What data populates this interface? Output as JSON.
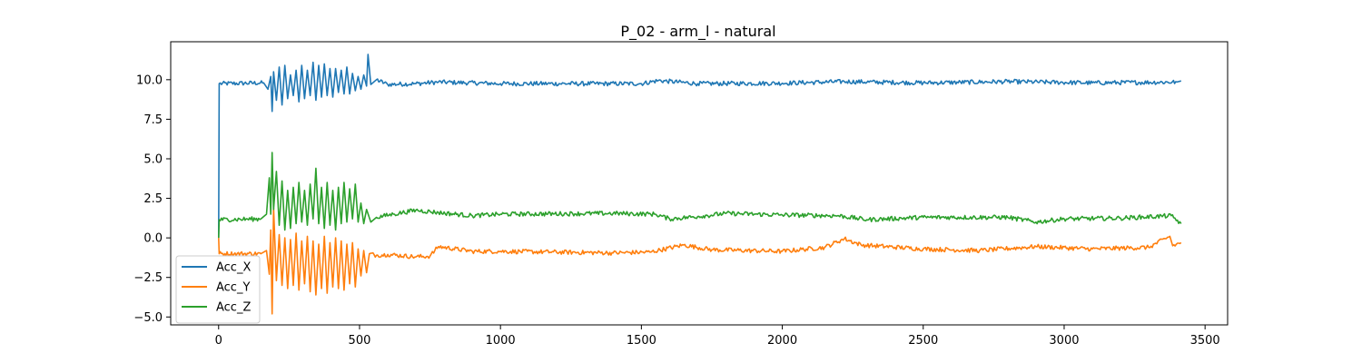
{
  "chart_data": {
    "type": "line",
    "title": "P_02 - arm_l - natural",
    "xlabel": "",
    "ylabel": "",
    "xlim": [
      -170,
      3580
    ],
    "ylim": [
      -5.5,
      12.4
    ],
    "x_ticks": [
      0,
      500,
      1000,
      1500,
      2000,
      2500,
      3000,
      3500
    ],
    "x_tick_labels": [
      "0",
      "500",
      "1000",
      "1500",
      "2000",
      "2500",
      "3000",
      "3500"
    ],
    "y_ticks": [
      -5.0,
      -2.5,
      0.0,
      2.5,
      5.0,
      7.5,
      10.0
    ],
    "y_tick_labels": [
      "−5.0",
      "−2.5",
      "0.0",
      "2.5",
      "5.0",
      "7.5",
      "10.0"
    ],
    "grid": false,
    "legend_position": "lower-left",
    "series": [
      {
        "name": "Acc_X",
        "color": "#1f77b4",
        "points": [
          [
            0,
            0.0
          ],
          [
            2,
            9.75
          ],
          [
            160,
            9.8
          ],
          [
            175,
            9.4
          ],
          [
            185,
            10.2
          ],
          [
            190,
            8.0
          ],
          [
            195,
            10.5
          ],
          [
            205,
            8.7
          ],
          [
            215,
            10.8
          ],
          [
            225,
            8.4
          ],
          [
            235,
            10.9
          ],
          [
            245,
            8.8
          ],
          [
            255,
            10.3
          ],
          [
            265,
            9.0
          ],
          [
            275,
            10.6
          ],
          [
            285,
            8.6
          ],
          [
            295,
            10.9
          ],
          [
            305,
            8.8
          ],
          [
            315,
            10.6
          ],
          [
            325,
            9.0
          ],
          [
            335,
            11.1
          ],
          [
            345,
            8.7
          ],
          [
            355,
            10.9
          ],
          [
            365,
            8.9
          ],
          [
            375,
            11.0
          ],
          [
            385,
            9.0
          ],
          [
            395,
            10.7
          ],
          [
            405,
            8.9
          ],
          [
            415,
            10.7
          ],
          [
            425,
            9.2
          ],
          [
            435,
            10.6
          ],
          [
            445,
            9.1
          ],
          [
            455,
            10.8
          ],
          [
            465,
            9.1
          ],
          [
            475,
            10.4
          ],
          [
            485,
            9.3
          ],
          [
            495,
            10.2
          ],
          [
            505,
            9.4
          ],
          [
            515,
            10.3
          ],
          [
            525,
            9.6
          ],
          [
            530,
            11.6
          ],
          [
            540,
            9.7
          ],
          [
            560,
            10.0
          ],
          [
            600,
            9.7
          ],
          [
            700,
            9.75
          ],
          [
            780,
            9.85
          ],
          [
            1000,
            9.75
          ],
          [
            1500,
            9.75
          ],
          [
            1560,
            9.95
          ],
          [
            1700,
            9.75
          ],
          [
            2000,
            9.78
          ],
          [
            2220,
            9.88
          ],
          [
            2500,
            9.8
          ],
          [
            2800,
            9.88
          ],
          [
            3100,
            9.8
          ],
          [
            3400,
            9.85
          ],
          [
            3415,
            9.92
          ]
        ]
      },
      {
        "name": "Acc_Y",
        "color": "#ff7f0e",
        "points": [
          [
            0,
            0.0
          ],
          [
            2,
            -1.0
          ],
          [
            150,
            -1.0
          ],
          [
            170,
            -0.8
          ],
          [
            180,
            -2.3
          ],
          [
            185,
            0.5
          ],
          [
            190,
            -4.8
          ],
          [
            195,
            1.9
          ],
          [
            205,
            -2.7
          ],
          [
            215,
            0.2
          ],
          [
            225,
            -3.0
          ],
          [
            235,
            0.0
          ],
          [
            245,
            -3.2
          ],
          [
            255,
            -0.1
          ],
          [
            265,
            -3.0
          ],
          [
            275,
            0.3
          ],
          [
            285,
            -3.3
          ],
          [
            295,
            -0.2
          ],
          [
            305,
            -2.9
          ],
          [
            315,
            0.1
          ],
          [
            325,
            -3.4
          ],
          [
            335,
            -0.2
          ],
          [
            345,
            -3.6
          ],
          [
            355,
            -0.4
          ],
          [
            365,
            -3.2
          ],
          [
            375,
            0.1
          ],
          [
            385,
            -3.5
          ],
          [
            395,
            -0.3
          ],
          [
            405,
            -3.1
          ],
          [
            415,
            0.0
          ],
          [
            425,
            -3.2
          ],
          [
            435,
            -0.2
          ],
          [
            445,
            -3.3
          ],
          [
            455,
            -0.4
          ],
          [
            465,
            -2.9
          ],
          [
            475,
            -0.3
          ],
          [
            485,
            -3.1
          ],
          [
            495,
            -0.7
          ],
          [
            505,
            -2.4
          ],
          [
            515,
            -0.8
          ],
          [
            525,
            -2.2
          ],
          [
            535,
            -1.0
          ],
          [
            560,
            -1.1
          ],
          [
            600,
            -1.05
          ],
          [
            700,
            -1.2
          ],
          [
            750,
            -1.15
          ],
          [
            780,
            -0.55
          ],
          [
            900,
            -0.85
          ],
          [
            1000,
            -0.85
          ],
          [
            1400,
            -0.95
          ],
          [
            1530,
            -0.9
          ],
          [
            1650,
            -0.45
          ],
          [
            1750,
            -0.75
          ],
          [
            2000,
            -0.85
          ],
          [
            2150,
            -0.6
          ],
          [
            2220,
            -0.05
          ],
          [
            2280,
            -0.45
          ],
          [
            2500,
            -0.7
          ],
          [
            2700,
            -0.8
          ],
          [
            2900,
            -0.55
          ],
          [
            3100,
            -0.7
          ],
          [
            3300,
            -0.6
          ],
          [
            3375,
            0.1
          ],
          [
            3385,
            -0.5
          ],
          [
            3415,
            -0.3
          ]
        ]
      },
      {
        "name": "Acc_Z",
        "color": "#2ca02c",
        "points": [
          [
            0,
            0.0
          ],
          [
            2,
            1.15
          ],
          [
            150,
            1.2
          ],
          [
            170,
            1.5
          ],
          [
            180,
            3.8
          ],
          [
            185,
            1.5
          ],
          [
            190,
            5.4
          ],
          [
            195,
            1.8
          ],
          [
            205,
            4.2
          ],
          [
            215,
            0.8
          ],
          [
            225,
            3.6
          ],
          [
            235,
            0.5
          ],
          [
            245,
            3.0
          ],
          [
            255,
            0.6
          ],
          [
            265,
            3.2
          ],
          [
            275,
            0.9
          ],
          [
            285,
            3.5
          ],
          [
            295,
            1.0
          ],
          [
            305,
            3.0
          ],
          [
            315,
            0.8
          ],
          [
            325,
            3.4
          ],
          [
            335,
            1.2
          ],
          [
            345,
            4.4
          ],
          [
            355,
            0.9
          ],
          [
            365,
            3.2
          ],
          [
            375,
            0.6
          ],
          [
            385,
            3.5
          ],
          [
            395,
            0.8
          ],
          [
            405,
            3.0
          ],
          [
            415,
            0.5
          ],
          [
            425,
            3.2
          ],
          [
            435,
            0.9
          ],
          [
            445,
            3.5
          ],
          [
            455,
            1.0
          ],
          [
            465,
            3.1
          ],
          [
            475,
            1.2
          ],
          [
            485,
            3.4
          ],
          [
            495,
            1.0
          ],
          [
            505,
            2.2
          ],
          [
            515,
            0.9
          ],
          [
            525,
            1.8
          ],
          [
            540,
            1.0
          ],
          [
            560,
            1.3
          ],
          [
            620,
            1.5
          ],
          [
            700,
            1.75
          ],
          [
            780,
            1.6
          ],
          [
            900,
            1.4
          ],
          [
            1000,
            1.5
          ],
          [
            1400,
            1.55
          ],
          [
            1550,
            1.5
          ],
          [
            1600,
            1.2
          ],
          [
            1700,
            1.35
          ],
          [
            1800,
            1.55
          ],
          [
            2000,
            1.45
          ],
          [
            2200,
            1.4
          ],
          [
            2300,
            1.15
          ],
          [
            2500,
            1.3
          ],
          [
            2800,
            1.3
          ],
          [
            2900,
            1.0
          ],
          [
            3000,
            1.2
          ],
          [
            3200,
            1.25
          ],
          [
            3380,
            1.4
          ],
          [
            3415,
            0.9
          ]
        ]
      }
    ]
  }
}
